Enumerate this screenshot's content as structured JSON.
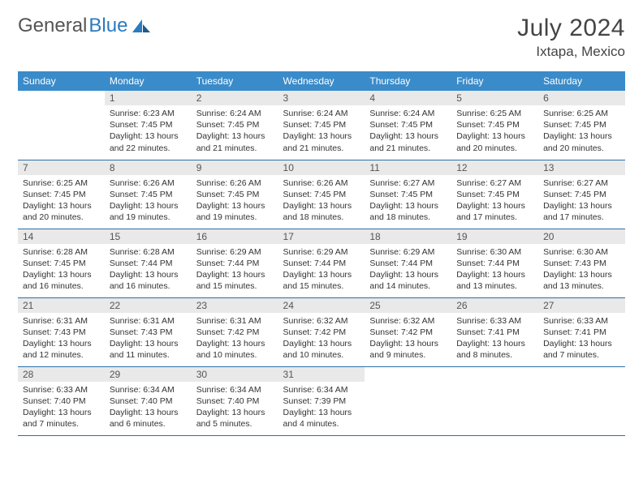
{
  "brand": {
    "name_gray": "General",
    "name_blue": "Blue"
  },
  "title": "July 2024",
  "location": "Ixtapa, Mexico",
  "dayHeaders": [
    "Sunday",
    "Monday",
    "Tuesday",
    "Wednesday",
    "Thursday",
    "Friday",
    "Saturday"
  ],
  "colors": {
    "header_bg": "#3a8bc9",
    "header_text": "#ffffff",
    "daynum_bg": "#e9e9e9",
    "row_border": "#2b6fa8",
    "brand_gray": "#555555",
    "brand_blue": "#2b7bbf"
  },
  "weeks": [
    [
      null,
      {
        "n": "1",
        "sr": "Sunrise: 6:23 AM",
        "ss": "Sunset: 7:45 PM",
        "d1": "Daylight: 13 hours",
        "d2": "and 22 minutes."
      },
      {
        "n": "2",
        "sr": "Sunrise: 6:24 AM",
        "ss": "Sunset: 7:45 PM",
        "d1": "Daylight: 13 hours",
        "d2": "and 21 minutes."
      },
      {
        "n": "3",
        "sr": "Sunrise: 6:24 AM",
        "ss": "Sunset: 7:45 PM",
        "d1": "Daylight: 13 hours",
        "d2": "and 21 minutes."
      },
      {
        "n": "4",
        "sr": "Sunrise: 6:24 AM",
        "ss": "Sunset: 7:45 PM",
        "d1": "Daylight: 13 hours",
        "d2": "and 21 minutes."
      },
      {
        "n": "5",
        "sr": "Sunrise: 6:25 AM",
        "ss": "Sunset: 7:45 PM",
        "d1": "Daylight: 13 hours",
        "d2": "and 20 minutes."
      },
      {
        "n": "6",
        "sr": "Sunrise: 6:25 AM",
        "ss": "Sunset: 7:45 PM",
        "d1": "Daylight: 13 hours",
        "d2": "and 20 minutes."
      }
    ],
    [
      {
        "n": "7",
        "sr": "Sunrise: 6:25 AM",
        "ss": "Sunset: 7:45 PM",
        "d1": "Daylight: 13 hours",
        "d2": "and 20 minutes."
      },
      {
        "n": "8",
        "sr": "Sunrise: 6:26 AM",
        "ss": "Sunset: 7:45 PM",
        "d1": "Daylight: 13 hours",
        "d2": "and 19 minutes."
      },
      {
        "n": "9",
        "sr": "Sunrise: 6:26 AM",
        "ss": "Sunset: 7:45 PM",
        "d1": "Daylight: 13 hours",
        "d2": "and 19 minutes."
      },
      {
        "n": "10",
        "sr": "Sunrise: 6:26 AM",
        "ss": "Sunset: 7:45 PM",
        "d1": "Daylight: 13 hours",
        "d2": "and 18 minutes."
      },
      {
        "n": "11",
        "sr": "Sunrise: 6:27 AM",
        "ss": "Sunset: 7:45 PM",
        "d1": "Daylight: 13 hours",
        "d2": "and 18 minutes."
      },
      {
        "n": "12",
        "sr": "Sunrise: 6:27 AM",
        "ss": "Sunset: 7:45 PM",
        "d1": "Daylight: 13 hours",
        "d2": "and 17 minutes."
      },
      {
        "n": "13",
        "sr": "Sunrise: 6:27 AM",
        "ss": "Sunset: 7:45 PM",
        "d1": "Daylight: 13 hours",
        "d2": "and 17 minutes."
      }
    ],
    [
      {
        "n": "14",
        "sr": "Sunrise: 6:28 AM",
        "ss": "Sunset: 7:45 PM",
        "d1": "Daylight: 13 hours",
        "d2": "and 16 minutes."
      },
      {
        "n": "15",
        "sr": "Sunrise: 6:28 AM",
        "ss": "Sunset: 7:44 PM",
        "d1": "Daylight: 13 hours",
        "d2": "and 16 minutes."
      },
      {
        "n": "16",
        "sr": "Sunrise: 6:29 AM",
        "ss": "Sunset: 7:44 PM",
        "d1": "Daylight: 13 hours",
        "d2": "and 15 minutes."
      },
      {
        "n": "17",
        "sr": "Sunrise: 6:29 AM",
        "ss": "Sunset: 7:44 PM",
        "d1": "Daylight: 13 hours",
        "d2": "and 15 minutes."
      },
      {
        "n": "18",
        "sr": "Sunrise: 6:29 AM",
        "ss": "Sunset: 7:44 PM",
        "d1": "Daylight: 13 hours",
        "d2": "and 14 minutes."
      },
      {
        "n": "19",
        "sr": "Sunrise: 6:30 AM",
        "ss": "Sunset: 7:44 PM",
        "d1": "Daylight: 13 hours",
        "d2": "and 13 minutes."
      },
      {
        "n": "20",
        "sr": "Sunrise: 6:30 AM",
        "ss": "Sunset: 7:43 PM",
        "d1": "Daylight: 13 hours",
        "d2": "and 13 minutes."
      }
    ],
    [
      {
        "n": "21",
        "sr": "Sunrise: 6:31 AM",
        "ss": "Sunset: 7:43 PM",
        "d1": "Daylight: 13 hours",
        "d2": "and 12 minutes."
      },
      {
        "n": "22",
        "sr": "Sunrise: 6:31 AM",
        "ss": "Sunset: 7:43 PM",
        "d1": "Daylight: 13 hours",
        "d2": "and 11 minutes."
      },
      {
        "n": "23",
        "sr": "Sunrise: 6:31 AM",
        "ss": "Sunset: 7:42 PM",
        "d1": "Daylight: 13 hours",
        "d2": "and 10 minutes."
      },
      {
        "n": "24",
        "sr": "Sunrise: 6:32 AM",
        "ss": "Sunset: 7:42 PM",
        "d1": "Daylight: 13 hours",
        "d2": "and 10 minutes."
      },
      {
        "n": "25",
        "sr": "Sunrise: 6:32 AM",
        "ss": "Sunset: 7:42 PM",
        "d1": "Daylight: 13 hours",
        "d2": "and 9 minutes."
      },
      {
        "n": "26",
        "sr": "Sunrise: 6:33 AM",
        "ss": "Sunset: 7:41 PM",
        "d1": "Daylight: 13 hours",
        "d2": "and 8 minutes."
      },
      {
        "n": "27",
        "sr": "Sunrise: 6:33 AM",
        "ss": "Sunset: 7:41 PM",
        "d1": "Daylight: 13 hours",
        "d2": "and 7 minutes."
      }
    ],
    [
      {
        "n": "28",
        "sr": "Sunrise: 6:33 AM",
        "ss": "Sunset: 7:40 PM",
        "d1": "Daylight: 13 hours",
        "d2": "and 7 minutes."
      },
      {
        "n": "29",
        "sr": "Sunrise: 6:34 AM",
        "ss": "Sunset: 7:40 PM",
        "d1": "Daylight: 13 hours",
        "d2": "and 6 minutes."
      },
      {
        "n": "30",
        "sr": "Sunrise: 6:34 AM",
        "ss": "Sunset: 7:40 PM",
        "d1": "Daylight: 13 hours",
        "d2": "and 5 minutes."
      },
      {
        "n": "31",
        "sr": "Sunrise: 6:34 AM",
        "ss": "Sunset: 7:39 PM",
        "d1": "Daylight: 13 hours",
        "d2": "and 4 minutes."
      },
      null,
      null,
      null
    ]
  ]
}
